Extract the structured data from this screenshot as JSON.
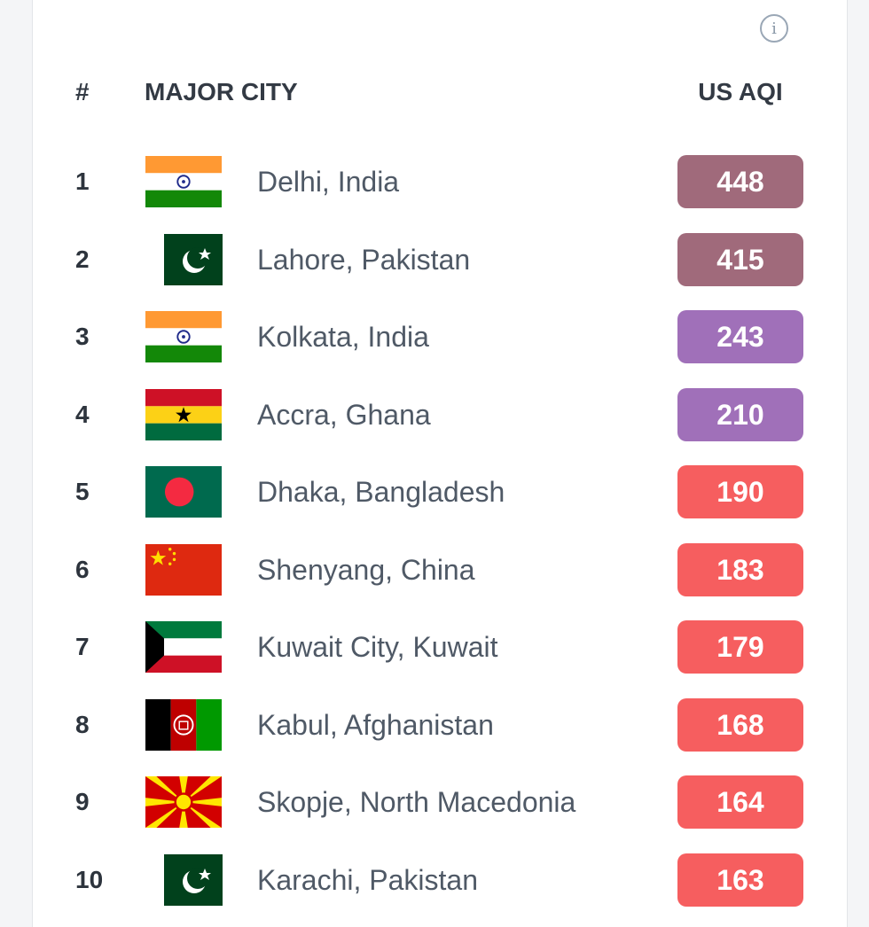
{
  "header": {
    "info_icon": "info-circle-icon",
    "rank_label": "#",
    "city_label": "MAJOR CITY",
    "aqi_label": "US AQI"
  },
  "rows": [
    {
      "rank": "1",
      "city": "Delhi, India",
      "aqi": "448",
      "flag": "india",
      "color": "#a06a7b"
    },
    {
      "rank": "2",
      "city": "Lahore, Pakistan",
      "aqi": "415",
      "flag": "pakistan",
      "color": "#a06a7b"
    },
    {
      "rank": "3",
      "city": "Kolkata, India",
      "aqi": "243",
      "flag": "india",
      "color": "#a070b9"
    },
    {
      "rank": "4",
      "city": "Accra, Ghana",
      "aqi": "210",
      "flag": "ghana",
      "color": "#a070b9"
    },
    {
      "rank": "5",
      "city": "Dhaka, Bangladesh",
      "aqi": "190",
      "flag": "bangladesh",
      "color": "#f65e5f"
    },
    {
      "rank": "6",
      "city": "Shenyang, China",
      "aqi": "183",
      "flag": "china",
      "color": "#f65e5f"
    },
    {
      "rank": "7",
      "city": "Kuwait City, Kuwait",
      "aqi": "179",
      "flag": "kuwait",
      "color": "#f65e5f"
    },
    {
      "rank": "8",
      "city": "Kabul, Afghanistan",
      "aqi": "168",
      "flag": "afghanistan",
      "color": "#f65e5f"
    },
    {
      "rank": "9",
      "city": "Skopje, North Macedonia",
      "aqi": "164",
      "flag": "north-macedonia",
      "color": "#f65e5f"
    },
    {
      "rank": "10",
      "city": "Karachi, Pakistan",
      "aqi": "163",
      "flag": "pakistan",
      "color": "#f65e5f"
    }
  ]
}
